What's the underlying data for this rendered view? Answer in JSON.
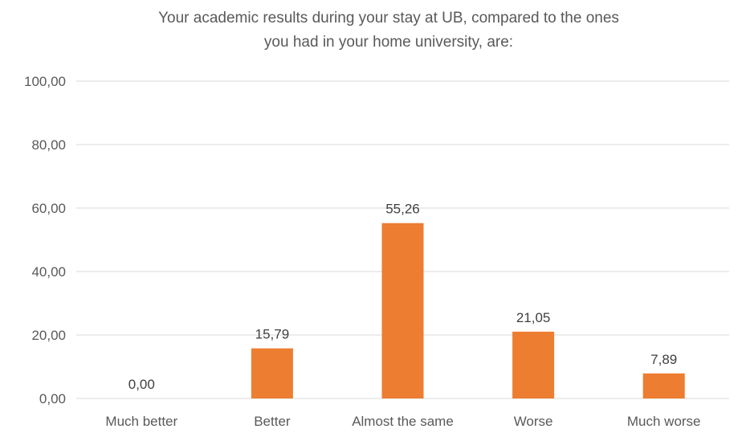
{
  "chart_data": {
    "type": "bar",
    "title_lines": [
      "Your academic results during your stay at UB, compared to the ones",
      "you had in your home university, are:"
    ],
    "categories": [
      "Much better",
      "Better",
      "Almost the same",
      "Worse",
      "Much worse"
    ],
    "values": [
      0.0,
      15.79,
      55.26,
      21.05,
      7.89
    ],
    "value_labels": [
      "0,00",
      "15,79",
      "55,26",
      "21,05",
      "7,89"
    ],
    "ylim": [
      0,
      100
    ],
    "yticks": [
      0,
      20,
      40,
      60,
      80,
      100
    ],
    "ytick_labels": [
      "0,00",
      "20,00",
      "40,00",
      "60,00",
      "80,00",
      "100,00"
    ],
    "bar_color": "#ED7D31",
    "grid": true,
    "legend": false
  }
}
